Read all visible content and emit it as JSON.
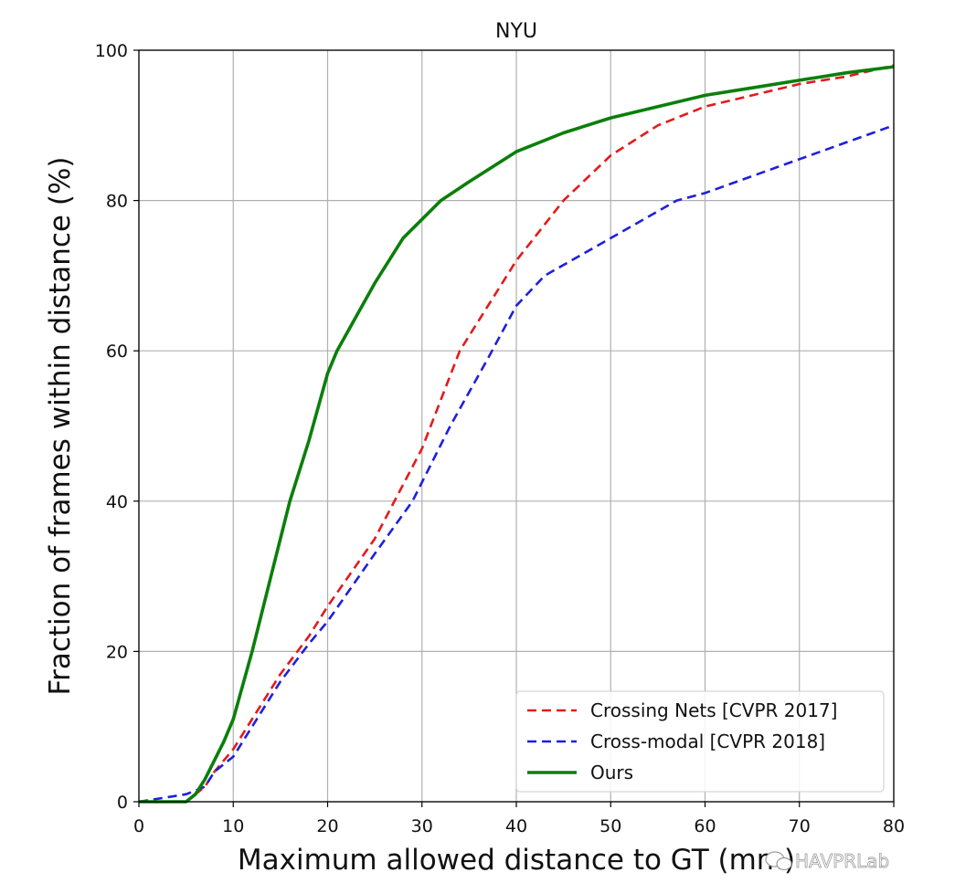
{
  "chart_data": {
    "type": "line",
    "title": "NYU",
    "xlabel": "Maximum allowed distance to GT (mm)",
    "ylabel": "Fraction of frames within distance (%)",
    "xlim": [
      0,
      80
    ],
    "ylim": [
      0,
      100
    ],
    "x_ticks": [
      0,
      10,
      20,
      30,
      40,
      50,
      60,
      70,
      80
    ],
    "y_ticks": [
      0,
      20,
      40,
      60,
      80,
      100
    ],
    "grid": true,
    "legend_position": "lower-right",
    "series": [
      {
        "name": "Crossing Nets [CVPR 2017]",
        "color": "#e41a1c",
        "line_style": "dashed",
        "x": [
          0,
          5,
          6,
          7,
          8,
          10,
          12,
          15,
          18,
          20,
          25,
          30,
          34,
          40,
          45,
          50,
          55,
          60,
          65,
          70,
          75,
          80
        ],
        "y": [
          0,
          0,
          1,
          2,
          4,
          7,
          11,
          17,
          22,
          26,
          35,
          47,
          60,
          72,
          80,
          86,
          90,
          92.5,
          94,
          95.5,
          96.5,
          98
        ]
      },
      {
        "name": "Cross-modal [CVPR 2018]",
        "color": "#1f1fdd",
        "line_style": "dashed",
        "x": [
          0,
          5,
          6,
          7,
          8,
          10,
          12,
          15,
          18,
          20,
          25,
          29,
          33,
          37,
          40,
          43,
          50,
          57,
          60,
          70,
          80
        ],
        "y": [
          0,
          1,
          1.5,
          2,
          4,
          6,
          10,
          16,
          21,
          24,
          33,
          40,
          50,
          59,
          66,
          70,
          75,
          80,
          81,
          85.5,
          90
        ]
      },
      {
        "name": "Ours",
        "color": "#0a7f0a",
        "line_style": "solid",
        "x": [
          0,
          5,
          6,
          7,
          9,
          10,
          12,
          14,
          16,
          18,
          20,
          21,
          25,
          28,
          30,
          32,
          35,
          40,
          45,
          50,
          55,
          60,
          65,
          70,
          75,
          80
        ],
        "y": [
          0,
          0,
          1,
          3,
          8,
          11,
          20,
          30,
          40,
          48,
          57,
          60,
          69,
          75,
          77.5,
          80,
          82.5,
          86.5,
          89,
          91,
          92.5,
          94,
          95,
          96,
          97,
          97.8
        ]
      }
    ]
  },
  "watermark": {
    "text": "HAVPRLab",
    "icon": "chat-bubble-icon"
  }
}
